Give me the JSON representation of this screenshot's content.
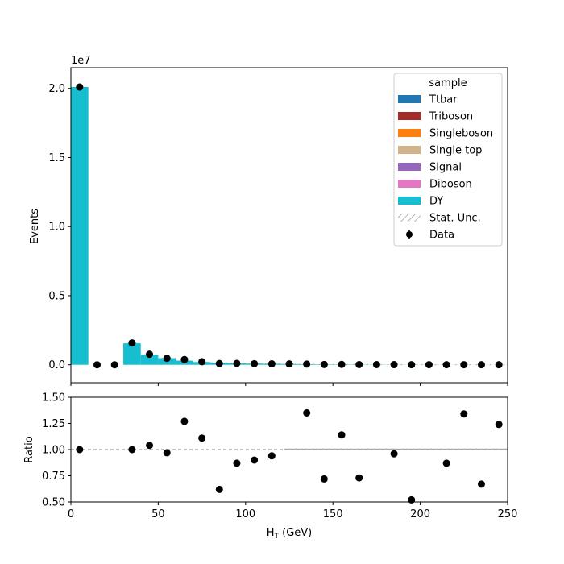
{
  "chart_data": {
    "type": "bar",
    "xlabel": "H",
    "xlabel_sub": "T",
    "xlabel_unit": " (GeV)",
    "xlim": [
      0,
      250
    ],
    "x_ticks": [
      "0",
      "50",
      "100",
      "150",
      "200",
      "250"
    ],
    "main": {
      "ylabel": "Events",
      "scale_label": "1e7",
      "ylim": [
        -0.13,
        2.15
      ],
      "y_ticks": [
        "0.0",
        "0.5",
        "1.0",
        "1.5",
        "2.0"
      ],
      "bin_edges": [
        0,
        10,
        20,
        30,
        40,
        50,
        60,
        70,
        80,
        90,
        100,
        110,
        120,
        130,
        140,
        150,
        160,
        170,
        180,
        190,
        200,
        210,
        220,
        230,
        240,
        250
      ],
      "stack": [
        {
          "name": "Ttbar",
          "color": "#1f77b4",
          "values": [
            0,
            0,
            0,
            0,
            0,
            0,
            0,
            0,
            0,
            0,
            0,
            0,
            0,
            0,
            0,
            0,
            0,
            0,
            0,
            0,
            0,
            0,
            0,
            0,
            0
          ]
        },
        {
          "name": "Triboson",
          "color": "#a52a2a",
          "values": [
            0,
            0,
            0,
            0,
            0,
            0,
            0,
            0,
            0,
            0,
            0,
            0,
            0,
            0,
            0,
            0,
            0,
            0,
            0,
            0,
            0,
            0,
            0,
            0,
            0
          ]
        },
        {
          "name": "Singleboson",
          "color": "#ff7f0e",
          "values": [
            0,
            0,
            0,
            0,
            0,
            0,
            0,
            0,
            0,
            0,
            0,
            0,
            0,
            0,
            0,
            0,
            0,
            0,
            0,
            0,
            0,
            0,
            0,
            0,
            0
          ]
        },
        {
          "name": "Single top",
          "color": "#d2b48c",
          "values": [
            0,
            0,
            0,
            0,
            0,
            0,
            0,
            0,
            0,
            0,
            0,
            0,
            0,
            0,
            0,
            0,
            0,
            0,
            0,
            0,
            0,
            0,
            0,
            0,
            0
          ]
        },
        {
          "name": "Signal",
          "color": "#9467bd",
          "values": [
            0,
            0,
            0,
            0,
            0,
            0,
            0,
            0,
            0,
            0,
            0,
            0,
            0,
            0,
            0,
            0,
            0,
            0,
            0,
            0,
            0,
            0,
            0,
            0,
            0
          ]
        },
        {
          "name": "Diboson",
          "color": "#e377c2",
          "values": [
            0,
            0,
            0,
            0,
            0,
            0,
            0,
            0,
            0,
            0,
            0,
            0,
            0,
            0,
            0,
            0,
            0,
            0,
            0,
            0,
            0,
            0,
            0,
            0,
            0
          ]
        },
        {
          "name": "DY",
          "color": "#17becf",
          "values": [
            2.01,
            0,
            0,
            0.155,
            0.073,
            0.048,
            0.03,
            0.02,
            0.015,
            0.011,
            0.009,
            0.007,
            0.006,
            0.004,
            0.003,
            0.0025,
            0.002,
            0.0015,
            0.0012,
            0.001,
            0.0008,
            0.0006,
            0.0005,
            0.0004,
            0.0003
          ]
        }
      ],
      "data": {
        "name": "Data",
        "x": [
          5,
          15,
          25,
          35,
          45,
          55,
          65,
          75,
          85,
          95,
          105,
          115,
          125,
          135,
          145,
          155,
          165,
          175,
          185,
          195,
          205,
          215,
          225,
          235,
          245
        ],
        "y": [
          2.01,
          0,
          0,
          0.158,
          0.076,
          0.047,
          0.038,
          0.022,
          0.009,
          0.01,
          0.008,
          0.007,
          0.006,
          0.005,
          0.002,
          0.003,
          0.0015,
          0.0015,
          0.001,
          0.0005,
          0.0008,
          0.0005,
          0.0007,
          0.0003,
          0.0004
        ]
      },
      "unc_label": "Stat. Unc.",
      "legend": {
        "title": "sample",
        "placement": "upper right",
        "entries": [
          "Ttbar",
          "Triboson",
          "Singleboson",
          "Single top",
          "Signal",
          "Diboson",
          "DY",
          "Stat. Unc.",
          "Data"
        ]
      }
    },
    "ratio": {
      "ylabel": "Ratio",
      "ylim": [
        0.5,
        1.5
      ],
      "y_ticks": [
        "0.50",
        "0.75",
        "1.00",
        "1.25",
        "1.50"
      ],
      "reference": 1.0,
      "x": [
        5,
        35,
        45,
        55,
        65,
        75,
        85,
        95,
        105,
        115,
        135,
        145,
        155,
        165,
        185,
        195,
        215,
        225,
        235,
        245
      ],
      "y": [
        1.0,
        1.0,
        1.04,
        0.97,
        1.27,
        1.11,
        0.62,
        0.87,
        0.9,
        0.94,
        1.35,
        0.72,
        1.14,
        0.73,
        0.96,
        0.52,
        0.87,
        1.34,
        0.67,
        1.24
      ]
    }
  }
}
